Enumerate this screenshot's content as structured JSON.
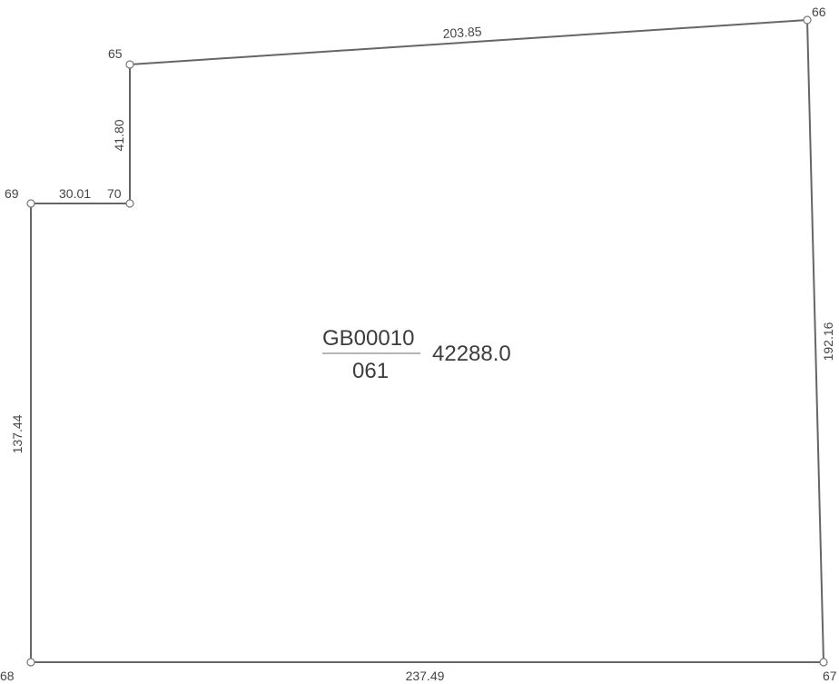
{
  "parcel": {
    "code": "GB00010",
    "number": "061",
    "area": "42288.0"
  },
  "vertices": [
    {
      "id": "65",
      "label": "65"
    },
    {
      "id": "66",
      "label": "66"
    },
    {
      "id": "67",
      "label": "67"
    },
    {
      "id": "68",
      "label": "68"
    },
    {
      "id": "69",
      "label": "69"
    },
    {
      "id": "70",
      "label": "70"
    }
  ],
  "edges": [
    {
      "from": "65",
      "to": "66",
      "length": "203.85"
    },
    {
      "from": "66",
      "to": "67",
      "length": "192.16"
    },
    {
      "from": "67",
      "to": "68",
      "length": "237.49"
    },
    {
      "from": "68",
      "to": "69",
      "length": "137.44"
    },
    {
      "from": "69",
      "to": "70",
      "length": "30.01"
    },
    {
      "from": "70",
      "to": "65",
      "length": "41.80"
    }
  ]
}
